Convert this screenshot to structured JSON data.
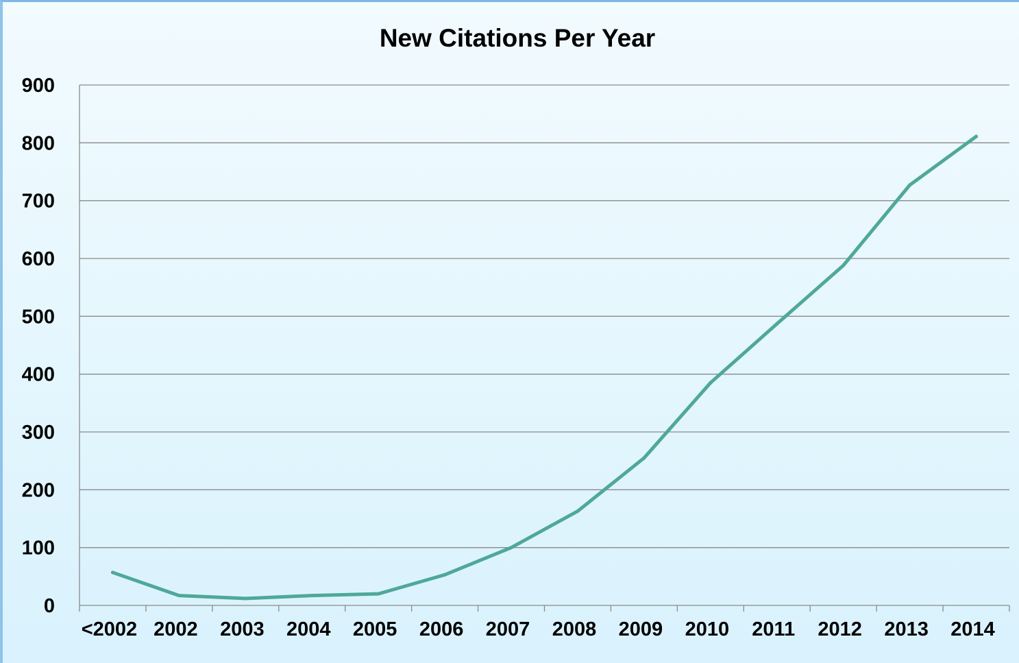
{
  "chart_data": {
    "type": "line",
    "title": "New Citations Per Year",
    "xlabel": "",
    "ylabel": "",
    "categories": [
      "<2002",
      "2002",
      "2003",
      "2004",
      "2005",
      "2006",
      "2007",
      "2008",
      "2009",
      "2010",
      "2011",
      "2012",
      "2013",
      "2014"
    ],
    "series": [
      {
        "values": [
          57,
          17,
          12,
          17,
          20,
          53,
          100,
          163,
          255,
          385,
          487,
          588,
          727,
          811
        ]
      }
    ],
    "ylim": [
      0,
      900
    ],
    "yticks": [
      0,
      100,
      200,
      300,
      400,
      500,
      600,
      700,
      800,
      900
    ],
    "grid": true,
    "legend": "none",
    "colors": {
      "series": "#4fa89a",
      "grid": "#8a8a8a",
      "background": "#e6f7fd"
    }
  }
}
